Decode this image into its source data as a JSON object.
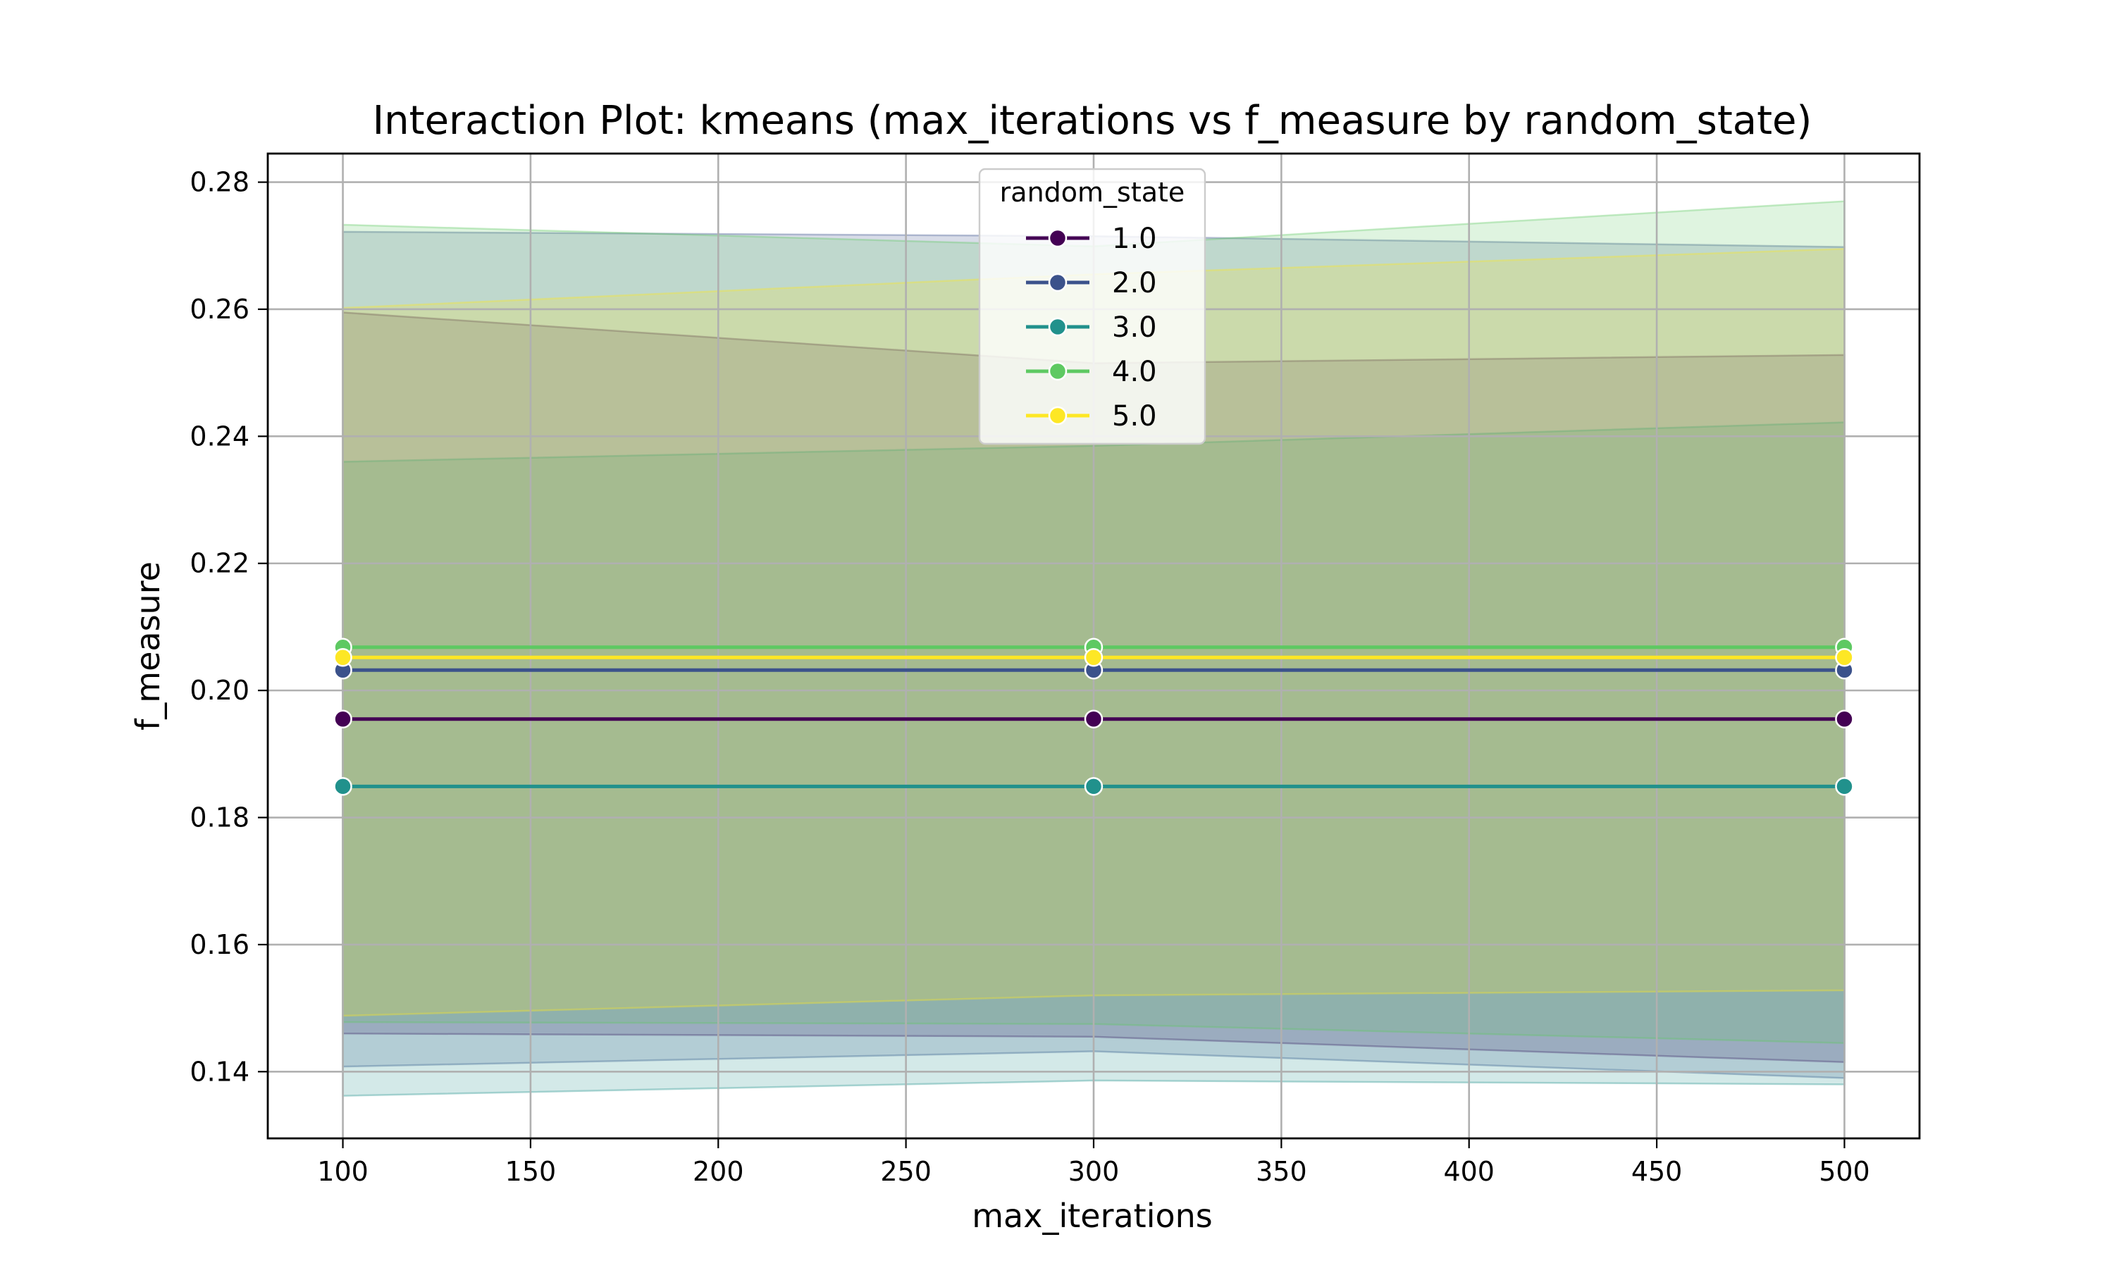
{
  "chart_data": {
    "type": "line",
    "title": "Interaction Plot: kmeans (max_iterations vs f_measure by random_state)",
    "xlabel": "max_iterations",
    "ylabel": "f_measure",
    "x": [
      100,
      300,
      500
    ],
    "xlim": [
      80,
      520
    ],
    "ylim": [
      0.1295,
      0.2845
    ],
    "xticks": [
      100,
      150,
      200,
      250,
      300,
      350,
      400,
      450,
      500
    ],
    "yticks": [
      0.14,
      0.16,
      0.18,
      0.2,
      0.22,
      0.24,
      0.26,
      0.28
    ],
    "grid": true,
    "legend": {
      "title": "random_state",
      "placement": "upper-center"
    },
    "series": [
      {
        "name": "1.0",
        "color": "#440154",
        "values": [
          0.1955,
          0.1955,
          0.1955
        ],
        "band_low": [
          0.146,
          0.1455,
          0.1415
        ],
        "band_high": [
          0.2595,
          0.2515,
          0.2528
        ]
      },
      {
        "name": "2.0",
        "color": "#3b528b",
        "values": [
          0.2032,
          0.2032,
          0.2032
        ],
        "band_low": [
          0.1408,
          0.1432,
          0.139
        ],
        "band_high": [
          0.2722,
          0.2715,
          0.2698
        ]
      },
      {
        "name": "3.0",
        "color": "#21918c",
        "values": [
          0.1849,
          0.1849,
          0.1849
        ],
        "band_low": [
          0.1362,
          0.1386,
          0.138
        ],
        "band_high": [
          0.236,
          0.2385,
          0.2422
        ]
      },
      {
        "name": "4.0",
        "color": "#5ec962",
        "values": [
          0.2068,
          0.2068,
          0.2068
        ],
        "band_low": [
          0.1478,
          0.1475,
          0.1445
        ],
        "band_high": [
          0.2733,
          0.2699,
          0.277
        ]
      },
      {
        "name": "5.0",
        "color": "#fde725",
        "values": [
          0.2052,
          0.2052,
          0.2052
        ],
        "band_low": [
          0.1488,
          0.152,
          0.1528
        ],
        "band_high": [
          0.2602,
          0.2655,
          0.2695
        ]
      }
    ]
  }
}
